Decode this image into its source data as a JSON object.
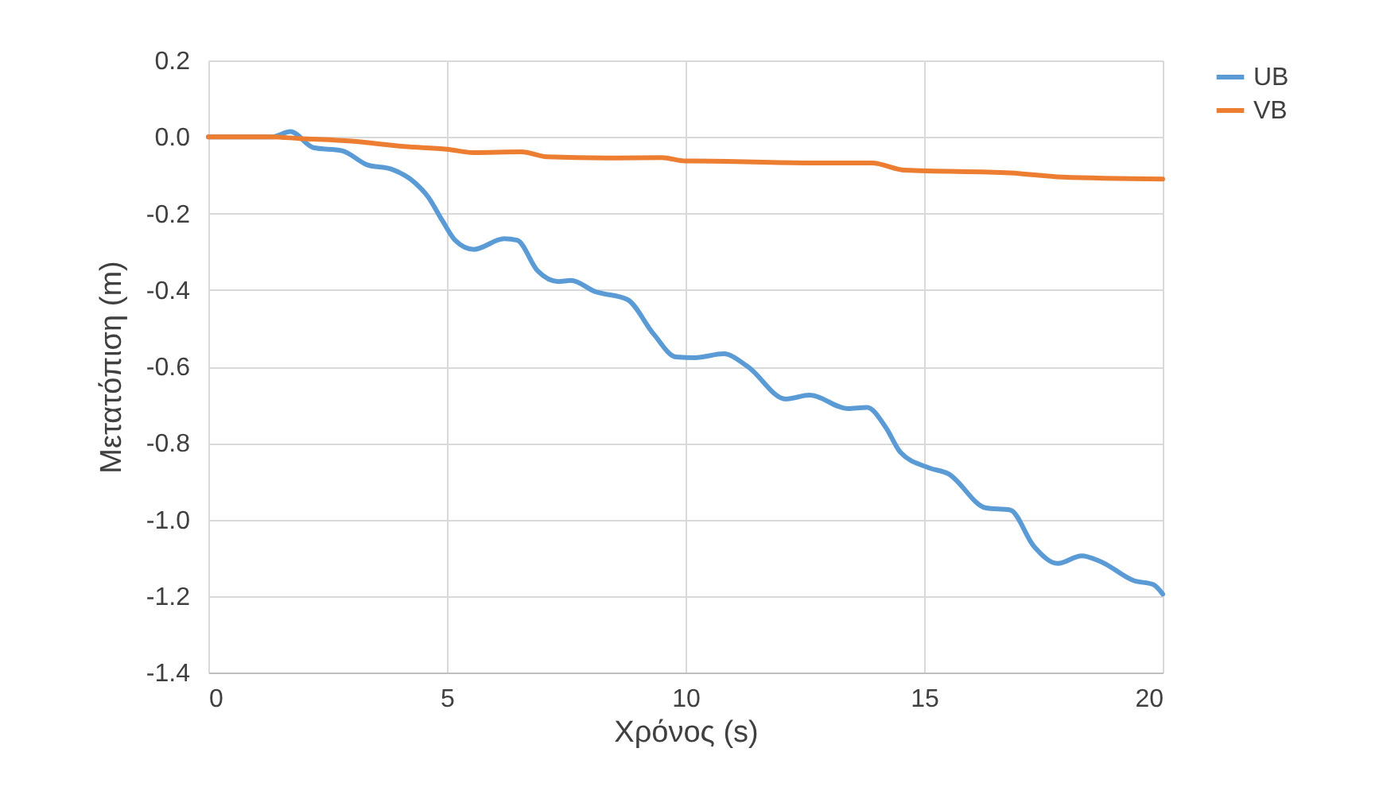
{
  "chart_data": {
    "type": "line",
    "xlabel": "Χρόνος (s)",
    "ylabel": "Μετατόπιση (m)",
    "xlim": [
      0,
      20
    ],
    "xticks": [
      0,
      5,
      10,
      15,
      20
    ],
    "ylim": [
      -1.4,
      0.2
    ],
    "yticks": [
      {
        "value": -1.4,
        "label": "-1.4"
      },
      {
        "value": -1.2,
        "label": "-1.2"
      },
      {
        "value": -1.0,
        "label": "-1.0"
      },
      {
        "value": -0.8,
        "label": "-0.8"
      },
      {
        "value": -0.6,
        "label": "-0.6"
      },
      {
        "value": -0.4,
        "label": "-0.4"
      },
      {
        "value": -0.2,
        "label": "-0.2"
      },
      {
        "value": 0,
        "label": "0.0"
      },
      {
        "value": 0.2,
        "label": "0.2"
      }
    ],
    "grid": true,
    "legend": "right",
    "marker": "none",
    "line_style": "solid",
    "series": [
      {
        "name": "UB",
        "color": "#5b9bd5",
        "x": [
          0,
          1.33,
          1.72,
          2.2,
          2.8,
          3.33,
          3.83,
          4.33,
          4.6,
          4.9,
          5.17,
          5.56,
          6.2,
          6.47,
          6.9,
          7.33,
          7.6,
          8.1,
          8.78,
          9.33,
          9.8,
          10.2,
          10.8,
          11.3,
          12.1,
          12.6,
          13.4,
          13.8,
          14.2,
          14.5,
          15.1,
          15.5,
          16.3,
          16.8,
          17.3,
          17.8,
          18.3,
          18.7,
          19.4,
          19.8,
          20
        ],
        "values": [
          0,
          0,
          0.014,
          -0.028,
          -0.036,
          -0.073,
          -0.084,
          -0.12,
          -0.156,
          -0.218,
          -0.27,
          -0.294,
          -0.266,
          -0.27,
          -0.35,
          -0.378,
          -0.375,
          -0.404,
          -0.425,
          -0.515,
          -0.575,
          -0.577,
          -0.567,
          -0.6,
          -0.685,
          -0.675,
          -0.71,
          -0.707,
          -0.76,
          -0.824,
          -0.865,
          -0.88,
          -0.97,
          -0.975,
          -1.07,
          -1.115,
          -1.095,
          -1.11,
          -1.16,
          -1.17,
          -1.195
        ]
      },
      {
        "name": "VB",
        "color": "#ed7d31",
        "x": [
          0,
          1.33,
          1.9,
          3,
          4.1,
          5,
          5.56,
          6.56,
          7.1,
          8.56,
          9.5,
          10,
          10.2,
          12.67,
          13.9,
          14.6,
          16.8,
          17.9,
          20
        ],
        "values": [
          0,
          0,
          -0.004,
          -0.011,
          -0.025,
          -0.032,
          -0.041,
          -0.039,
          -0.052,
          -0.055,
          -0.054,
          -0.063,
          -0.063,
          -0.068,
          -0.068,
          -0.087,
          -0.094,
          -0.105,
          -0.11
        ]
      }
    ]
  }
}
